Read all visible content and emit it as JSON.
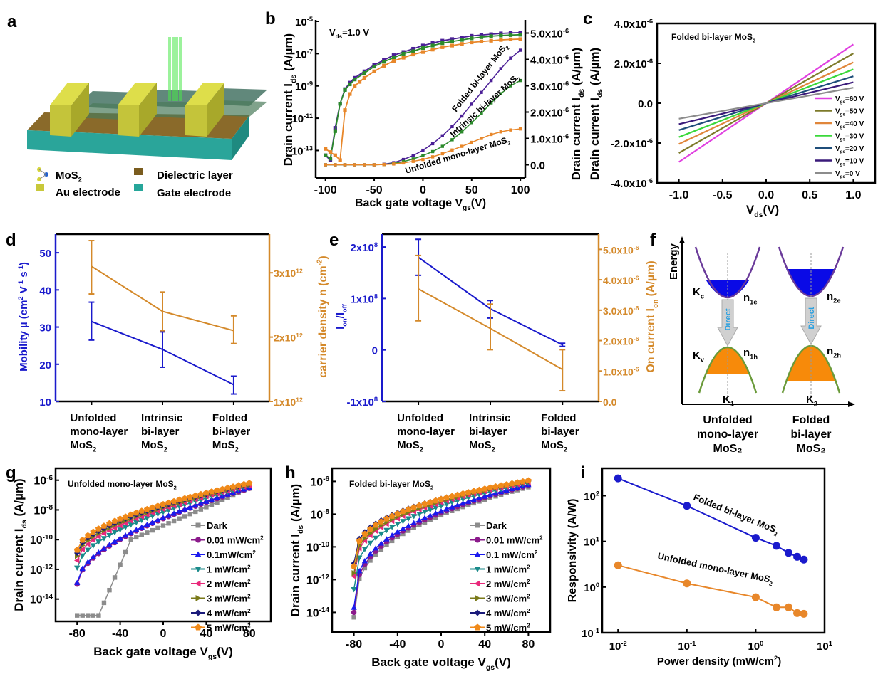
{
  "figure": {
    "panel_labels": [
      "a",
      "b",
      "c",
      "d",
      "e",
      "f",
      "g",
      "h",
      "i"
    ]
  },
  "panel_a": {
    "legend": [
      {
        "label": "MoS",
        "sub": "2",
        "color": "#d4d43a",
        "icon": "mos2-molecule-icon"
      },
      {
        "label": "Au electrode",
        "color": "#c8c83a",
        "icon": "au-electrode-swatch"
      },
      {
        "label": "Dielectric layer",
        "color": "#7a5c1e",
        "icon": "dielectric-swatch"
      },
      {
        "label": "Gate electrode",
        "color": "#26a69a",
        "icon": "gate-swatch"
      }
    ]
  },
  "chart_data": [
    {
      "id": "b",
      "type": "line",
      "annotation": "V_ds=1.0 V",
      "xlabel": "Back gate voltage V_gs(V)",
      "ylabel_left": "Drain current I_ds (A/µm)",
      "ylabel_right": "Drain current I_ds (A/µm)",
      "xlim": [
        -110,
        105
      ],
      "ylim_left_log": [
        -14.7,
        -5
      ],
      "ylim_right": [
        -5e-07,
        5.5e-06
      ],
      "xticks": [
        "-100",
        "-50",
        "0",
        "50",
        "100"
      ],
      "yticks_left": [
        "10^-5",
        "10^-7",
        "10^-9",
        "10^-11",
        "10^-13"
      ],
      "yticks_right": [
        "5.0x10^-6",
        "4.0x10^-6",
        "3.0x10^-6",
        "2.0x10^-6",
        "1.0x10^-6",
        "0.0"
      ],
      "series_log": [
        {
          "name": "Folded bi-layer MoS2",
          "color": "#4b1f96",
          "x": [
            -100,
            -95,
            -90,
            -85,
            -80,
            -75,
            -70,
            -60,
            -50,
            -40,
            -30,
            -20,
            -10,
            0,
            10,
            20,
            30,
            40,
            50,
            60,
            70,
            80,
            90,
            100
          ],
          "log_y": [
            -13.3,
            -13.6,
            -11.6,
            -10.1,
            -9.2,
            -8.8,
            -8.5,
            -8.1,
            -7.7,
            -7.4,
            -7.1,
            -6.9,
            -6.7,
            -6.5,
            -6.35,
            -6.2,
            -6.1,
            -6.0,
            -5.9,
            -5.85,
            -5.8,
            -5.75,
            -5.72,
            -5.7
          ]
        },
        {
          "name": "Intrinsic bi-layer MoS2",
          "color": "#2b8a2b",
          "x": [
            -100,
            -95,
            -90,
            -85,
            -80,
            -75,
            -70,
            -60,
            -50,
            -40,
            -30,
            -20,
            -10,
            0,
            10,
            20,
            30,
            40,
            50,
            60,
            70,
            80,
            90,
            100
          ],
          "log_y": [
            -13.3,
            -13.5,
            -11.8,
            -10.1,
            -9.25,
            -8.9,
            -8.6,
            -8.2,
            -7.8,
            -7.5,
            -7.25,
            -7.0,
            -6.85,
            -6.65,
            -6.5,
            -6.35,
            -6.25,
            -6.15,
            -6.05,
            -5.98,
            -5.92,
            -5.88,
            -5.85,
            -5.83
          ]
        },
        {
          "name": "Unfolded mono-layer MoS2",
          "color": "#e8872a",
          "x": [
            -100,
            -95,
            -90,
            -85,
            -80,
            -75,
            -70,
            -65,
            -60,
            -50,
            -40,
            -30,
            -20,
            -10,
            0,
            10,
            20,
            30,
            40,
            50,
            60,
            70,
            80,
            90,
            100
          ],
          "log_y": [
            -12.9,
            -13.1,
            -13.3,
            -13.6,
            -10.5,
            -9.5,
            -9.0,
            -8.75,
            -8.5,
            -8.1,
            -7.75,
            -7.45,
            -7.25,
            -7.05,
            -6.9,
            -6.75,
            -6.6,
            -6.5,
            -6.4,
            -6.3,
            -6.25,
            -6.2,
            -6.15,
            -6.12,
            -6.1
          ]
        }
      ],
      "series_linear": [
        {
          "name": "Folded bi-layer MoS2",
          "color": "#4b1f96",
          "x": [
            -100,
            -90,
            -80,
            -70,
            -60,
            -50,
            -40,
            -30,
            -20,
            -10,
            0,
            10,
            20,
            30,
            40,
            50,
            60,
            70,
            80,
            90,
            100
          ],
          "y": [
            0,
            0,
            0,
            0,
            0,
            0,
            2e-08,
            8e-08,
            2e-07,
            3.5e-07,
            5.5e-07,
            8e-07,
            1.1e-06,
            1.45e-06,
            1.85e-06,
            2.3e-06,
            2.75e-06,
            3.2e-06,
            3.65e-06,
            4.05e-06,
            4.35e-06
          ]
        },
        {
          "name": "Intrinsic bi-layer MoS2",
          "color": "#2b8a2b",
          "x": [
            -100,
            -90,
            -80,
            -70,
            -60,
            -50,
            -40,
            -30,
            -20,
            -10,
            0,
            10,
            20,
            30,
            40,
            50,
            60,
            70,
            80,
            90,
            100
          ],
          "y": [
            0,
            0,
            0,
            0,
            0,
            0,
            1e-08,
            5e-08,
            1.2e-07,
            2.2e-07,
            3.5e-07,
            5e-07,
            7e-07,
            9.5e-07,
            1.25e-06,
            1.6e-06,
            1.95e-06,
            2.35e-06,
            2.7e-06,
            3e-06,
            3.2e-06
          ]
        },
        {
          "name": "Unfolded mono-layer MoS2",
          "color": "#e8872a",
          "x": [
            -100,
            -90,
            -80,
            -70,
            -60,
            -50,
            -40,
            -30,
            -20,
            -10,
            0,
            10,
            20,
            30,
            40,
            50,
            60,
            70,
            80,
            90,
            100
          ],
          "y": [
            0,
            0,
            0,
            0,
            0,
            0,
            1e-08,
            3e-08,
            7e-08,
            1.3e-07,
            2e-07,
            3e-07,
            4.2e-07,
            5.6e-07,
            7e-07,
            8.5e-07,
            1e-06,
            1.15e-06,
            1.25e-06,
            1.32e-06,
            1.36e-06
          ]
        }
      ],
      "curve_labels": [
        "Folded bi-layer MoS2",
        "Intrinsic bi-layer MoS2",
        "Unfolded mono-layer MoS2"
      ]
    },
    {
      "id": "c",
      "type": "line",
      "title": "Folded bi-layer MoS2",
      "xlabel": "V_ds (V)",
      "ylabel": "Drain current I_ds (A/µm)",
      "xlim": [
        -1.25,
        1.25
      ],
      "ylim": [
        -4e-06,
        4e-06
      ],
      "xticks": [
        "-1.0",
        "-0.5",
        "0.0",
        "0.5",
        "1.0"
      ],
      "yticks": [
        "4.0x10^-6",
        "2.0x10^-6",
        "0.0",
        "-2.0x10^-6",
        "-4.0x10^-6"
      ],
      "legend_position": "bottom-right",
      "series": [
        {
          "name": "V_gs=60 V",
          "color": "#e040e0",
          "slope": 2.95e-06
        },
        {
          "name": "V_gs=50 V",
          "color": "#7d7a2a",
          "slope": 2.5e-06
        },
        {
          "name": "V_gs=40 V",
          "color": "#e0863a",
          "slope": 2.05e-06
        },
        {
          "name": "V_gs=30 V",
          "color": "#3ad83a",
          "slope": 1.7e-06
        },
        {
          "name": "V_gs=20 V",
          "color": "#1f4e7a",
          "slope": 1.35e-06
        },
        {
          "name": "V_gs=10 V",
          "color": "#3a1a7a",
          "slope": 1.05e-06
        },
        {
          "name": "V_gs=0 V",
          "color": "#8c8c8c",
          "slope": 7.8e-07
        }
      ]
    },
    {
      "id": "d",
      "type": "line",
      "categories": [
        "Unfolded mono-layer MoS2",
        "Intrinsic bi-layer MoS2",
        "Folded bi-layer MoS2"
      ],
      "ylabel_left": "Mobility µ (cm² V⁻¹ s⁻¹)",
      "ylabel_right": "carrier density n (cm⁻²)",
      "ylim_left": [
        10,
        55
      ],
      "ylim_right": [
        1000000000000.0,
        3600000000000.0
      ],
      "yticks_left": [
        "50",
        "40",
        "30",
        "20",
        "10"
      ],
      "yticks_right": [
        "3x10^12",
        "2x10^12",
        "1x10^12"
      ],
      "series": [
        {
          "name": "Mobility",
          "axis": "left",
          "color": "#1a1acc",
          "values": [
            31.5,
            24,
            14.5
          ],
          "err_low": [
            26.5,
            19.2,
            12
          ],
          "err_high": [
            36.7,
            28.7,
            16.8
          ]
        },
        {
          "name": "Carrier density",
          "axis": "right",
          "color": "#d4892a",
          "values": [
            3100000000000.0,
            2400000000000.0,
            2100000000000.0
          ],
          "err_low": [
            2670000000000.0,
            2100000000000.0,
            1900000000000.0
          ],
          "err_high": [
            3500000000000.0,
            2700000000000.0,
            2330000000000.0
          ]
        }
      ]
    },
    {
      "id": "e",
      "type": "line",
      "categories": [
        "Unfolded mono-layer MoS2",
        "Intrinsic bi-layer MoS2",
        "Folded bi-layer MoS2"
      ],
      "ylabel_left": "I_on/I_off",
      "ylabel_right": "On current I_on (A/µm)",
      "ylim_left": [
        -100000000.0,
        225000000.0
      ],
      "ylim_right": [
        0,
        5.5e-06
      ],
      "yticks_left": [
        "2x10^8",
        "1x10^8",
        "0",
        "-1x10^8"
      ],
      "yticks_right": [
        "5.0x10^-6",
        "4.0x10^-6",
        "3.0x10^-6",
        "2.0x10^-6",
        "1.0x10^-6",
        "0.0"
      ],
      "series": [
        {
          "name": "Ion/Ioff",
          "axis": "left",
          "color": "#1a1acc",
          "values": [
            180000000.0,
            80000000.0,
            10000000.0
          ],
          "err_low": [
            145000000.0,
            62000000.0,
            7000000.0
          ],
          "err_high": [
            215000000.0,
            96000000.0,
            13000000.0
          ]
        },
        {
          "name": "On current",
          "axis": "right",
          "color": "#d4892a",
          "values": [
            3.7e-06,
            2.4e-06,
            1.05e-06
          ],
          "err_low": [
            2.65e-06,
            1.7e-06,
            3.5e-07
          ],
          "err_high": [
            4.8e-06,
            3.2e-06,
            1.7e-06
          ]
        }
      ]
    },
    {
      "id": "g",
      "type": "line",
      "title": "Unfolded mono-layer MoS2",
      "xlabel": "Back gate voltage V_gs(V)",
      "ylabel": "Drain current I_ds (A/µm)",
      "xlim": [
        -100,
        100
      ],
      "ylim_log": [
        -15.5,
        -5.2
      ],
      "xticks": [
        "-80",
        "-40",
        "0",
        "40",
        "80"
      ],
      "yticks": [
        "10^-6",
        "10^-8",
        "10^-10",
        "10^-12",
        "10^-14"
      ],
      "legend_position": "right",
      "series": [
        {
          "name": "Dark",
          "color": "#8c8c8c",
          "marker": "square",
          "start": -15.1,
          "knee": -40,
          "end": -6.55,
          "dark": true
        },
        {
          "name": "0.01 mW/cm²",
          "color": "#8b1a8b",
          "marker": "circle",
          "start": -13.0,
          "end": -6.55
        },
        {
          "name": "0.1mW/cm²",
          "color": "#1a1aee",
          "marker": "triangle-up",
          "start": -12.9,
          "end": -6.5
        },
        {
          "name": "1 mW/cm²",
          "color": "#1a8a8a",
          "marker": "triangle-down",
          "start": -11.9,
          "end": -6.4
        },
        {
          "name": "2 mW/cm²",
          "color": "#e8287a",
          "marker": "triangle-left",
          "start": -11.4,
          "end": -6.35
        },
        {
          "name": "3 mW/cm²",
          "color": "#7a7a1a",
          "marker": "triangle-right",
          "start": -11.1,
          "end": -6.3
        },
        {
          "name": "4 mW/cm²",
          "color": "#1a1a7a",
          "marker": "diamond",
          "start": -10.9,
          "end": -6.25
        },
        {
          "name": "5 mW/cm²",
          "color": "#f08a1a",
          "marker": "pentagon",
          "start": -10.7,
          "end": -6.2
        }
      ]
    },
    {
      "id": "h",
      "type": "line",
      "title": "Folded bi-layer MoS2",
      "xlabel": "Back gate voltage V_gs(V)",
      "ylabel": "Drain current I_ds (A/µm)",
      "xlim": [
        -100,
        100
      ],
      "ylim_log": [
        -15.2,
        -5.2
      ],
      "xticks": [
        "-80",
        "-40",
        "0",
        "40",
        "80"
      ],
      "yticks": [
        "10^-6",
        "10^-8",
        "10^-10",
        "10^-12",
        "10^-14"
      ],
      "legend_position": "right",
      "series": [
        {
          "name": "Dark",
          "color": "#8c8c8c",
          "marker": "square",
          "start": -14.3,
          "end": -6.35
        },
        {
          "name": "0.01 mW/cm²",
          "color": "#8b1a8b",
          "marker": "circle",
          "start": -14.0,
          "end": -6.25
        },
        {
          "name": "0.1 mW/cm²",
          "color": "#1a1aee",
          "marker": "triangle-up",
          "start": -13.7,
          "end": -6.2
        },
        {
          "name": "1 mW/cm²",
          "color": "#1a8a8a",
          "marker": "triangle-down",
          "start": -12.6,
          "end": -6.1
        },
        {
          "name": "2 mW/cm²",
          "color": "#e8287a",
          "marker": "triangle-left",
          "start": -11.8,
          "end": -6.05
        },
        {
          "name": "3 mW/cm²",
          "color": "#7a7a1a",
          "marker": "triangle-right",
          "start": -11.6,
          "end": -6.0
        },
        {
          "name": "4 mW/cm²",
          "color": "#1a1a7a",
          "marker": "diamond",
          "start": -11.0,
          "end": -5.97
        },
        {
          "name": "5 mW/cm²",
          "color": "#f08a1a",
          "marker": "pentagon",
          "start": -11.2,
          "end": -5.95
        }
      ]
    },
    {
      "id": "i",
      "type": "scatter",
      "xlabel": "Power density (mW/cm²)",
      "ylabel": "Responsivity (A/W)",
      "xlim_log": [
        -2.23,
        1
      ],
      "ylim_log": [
        -1,
        2.6
      ],
      "xticks": [
        "10^-2",
        "10^-1",
        "10^0",
        "10^1"
      ],
      "yticks": [
        "10^2",
        "10^1",
        "10^0",
        "10^-1"
      ],
      "series": [
        {
          "name": "Folded bi-layer MoS2",
          "color": "#1a1acc",
          "x": [
            0.01,
            0.1,
            1,
            2,
            3,
            4,
            5
          ],
          "y": [
            240,
            60,
            12,
            8,
            5.6,
            4.6,
            4.0
          ]
        },
        {
          "name": "Unfolded mono-layer MoS2",
          "color": "#e8872a",
          "x": [
            0.01,
            0.1,
            1,
            2,
            3,
            4,
            5
          ],
          "y": [
            3.0,
            1.2,
            0.6,
            0.36,
            0.36,
            0.27,
            0.26
          ]
        }
      ]
    }
  ],
  "panel_f": {
    "axis_label": "Energy",
    "left": {
      "kc": "K",
      "kc_sub": "c",
      "kv": "K",
      "kv_sub": "v",
      "ne": "n",
      "ne_sub": "1e",
      "nh": "n",
      "nh_sub": "1h",
      "k": "K",
      "k_sub": "1",
      "arrow": "Direct",
      "caption": [
        "Unfolded",
        "mono-layer",
        "MoS₂"
      ]
    },
    "right": {
      "ne": "n",
      "ne_sub": "2e",
      "nh": "n",
      "nh_sub": "2h",
      "k": "K",
      "k_sub": "2",
      "arrow": "Direct",
      "caption": [
        "Folded",
        "bi-layer",
        "MoS₂"
      ]
    },
    "colors": {
      "conduction_fill": "#0a0ae6",
      "valence_fill": "#f78a0a",
      "conduction_line": "#6a3a9a",
      "valence_line": "#6a9a3a",
      "arrow": "#d0d0d0",
      "arrow_text": "#2aa0e0"
    }
  }
}
